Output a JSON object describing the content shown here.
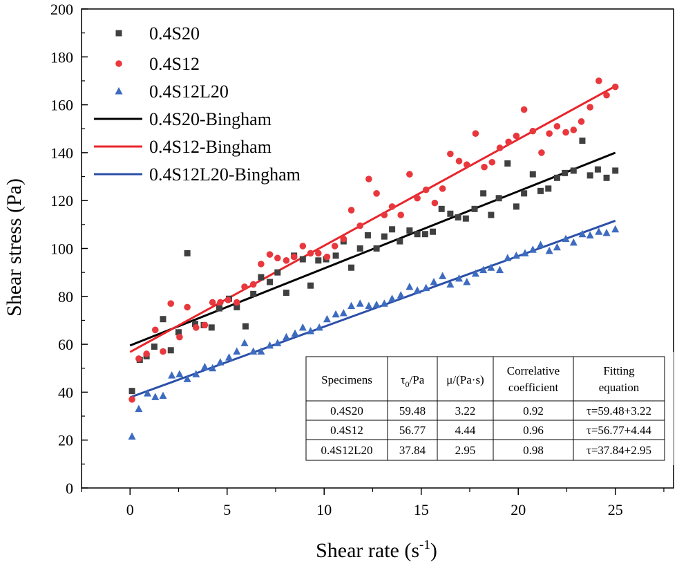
{
  "chart_data": {
    "type": "scatter",
    "xlabel": "Shear rate (s",
    "xlabel_sup": "-1",
    "xlabel_end": ")",
    "ylabel": "Shear stress (Pa)",
    "xlim": [
      -2.5,
      28
    ],
    "ylim": [
      0,
      200
    ],
    "xticks": [
      "0",
      "5",
      "10",
      "15",
      "20",
      "25"
    ],
    "yticks": [
      "0",
      "20",
      "40",
      "60",
      "80",
      "100",
      "120",
      "140",
      "160",
      "180",
      "200"
    ],
    "legend_position": "top-left",
    "series": [
      {
        "name": "0.4S20",
        "kind": "scatter",
        "marker": "square",
        "color": "#404040",
        "points": [
          [
            0.1,
            40.5
          ],
          [
            0.5,
            53.5
          ],
          [
            0.85,
            55
          ],
          [
            1.25,
            59
          ],
          [
            1.7,
            70.5
          ],
          [
            2.1,
            57.5
          ],
          [
            2.5,
            65
          ],
          [
            2.95,
            98
          ],
          [
            3.35,
            68.5
          ],
          [
            3.8,
            68
          ],
          [
            4.2,
            67
          ],
          [
            4.6,
            75
          ],
          [
            5.1,
            79
          ],
          [
            5.5,
            75.5
          ],
          [
            5.95,
            67.5
          ],
          [
            6.35,
            81
          ],
          [
            6.75,
            88
          ],
          [
            7.2,
            86
          ],
          [
            7.6,
            90
          ],
          [
            8.05,
            81.5
          ],
          [
            8.45,
            97
          ],
          [
            8.9,
            95.5
          ],
          [
            9.3,
            84.5
          ],
          [
            9.7,
            95
          ],
          [
            10.1,
            95.5
          ],
          [
            10.6,
            97
          ],
          [
            11.0,
            103
          ],
          [
            11.4,
            92
          ],
          [
            11.85,
            100
          ],
          [
            12.25,
            105.5
          ],
          [
            12.7,
            100
          ],
          [
            13.1,
            105
          ],
          [
            13.5,
            108
          ],
          [
            13.9,
            103
          ],
          [
            14.4,
            107.5
          ],
          [
            14.8,
            106
          ],
          [
            15.2,
            106
          ],
          [
            15.6,
            107
          ],
          [
            16.05,
            116.5
          ],
          [
            16.5,
            114.5
          ],
          [
            16.9,
            113
          ],
          [
            17.3,
            112.5
          ],
          [
            17.75,
            116.5
          ],
          [
            18.2,
            123
          ],
          [
            18.6,
            114
          ],
          [
            19.0,
            121
          ],
          [
            19.45,
            135.5
          ],
          [
            19.9,
            117.5
          ],
          [
            20.3,
            123
          ],
          [
            20.75,
            131
          ],
          [
            21.15,
            124
          ],
          [
            21.55,
            125
          ],
          [
            22.0,
            129.5
          ],
          [
            22.4,
            131.5
          ],
          [
            22.85,
            132.5
          ],
          [
            23.3,
            145
          ],
          [
            23.7,
            130.5
          ],
          [
            24.1,
            133
          ],
          [
            24.55,
            129.5
          ],
          [
            25.0,
            132.5
          ]
        ]
      },
      {
        "name": "0.4S12",
        "kind": "scatter",
        "marker": "circle",
        "color": "#e8383d",
        "points": [
          [
            0.1,
            37
          ],
          [
            0.45,
            54
          ],
          [
            0.85,
            56
          ],
          [
            1.3,
            66
          ],
          [
            1.7,
            57
          ],
          [
            2.1,
            77
          ],
          [
            2.55,
            63
          ],
          [
            2.95,
            75.5
          ],
          [
            3.4,
            67
          ],
          [
            3.85,
            68
          ],
          [
            4.25,
            77.5
          ],
          [
            4.65,
            77.5
          ],
          [
            5.05,
            78.5
          ],
          [
            5.5,
            77.5
          ],
          [
            5.9,
            84
          ],
          [
            6.35,
            85
          ],
          [
            6.75,
            93.5
          ],
          [
            7.2,
            97.5
          ],
          [
            7.6,
            96
          ],
          [
            8.05,
            95
          ],
          [
            8.45,
            96.5
          ],
          [
            8.9,
            101
          ],
          [
            9.3,
            98
          ],
          [
            9.7,
            98
          ],
          [
            10.15,
            96.5
          ],
          [
            10.55,
            101
          ],
          [
            11.0,
            104
          ],
          [
            11.4,
            116
          ],
          [
            11.85,
            109.5
          ],
          [
            12.3,
            129
          ],
          [
            12.7,
            123
          ],
          [
            13.1,
            114
          ],
          [
            13.5,
            117.5
          ],
          [
            13.95,
            114
          ],
          [
            14.4,
            131
          ],
          [
            14.8,
            121
          ],
          [
            15.25,
            124.5
          ],
          [
            15.7,
            119
          ],
          [
            16.1,
            125
          ],
          [
            16.5,
            139.5
          ],
          [
            16.95,
            136.5
          ],
          [
            17.35,
            135
          ],
          [
            17.8,
            148
          ],
          [
            18.25,
            134
          ],
          [
            18.65,
            136
          ],
          [
            19.05,
            142
          ],
          [
            19.5,
            144.5
          ],
          [
            19.9,
            147
          ],
          [
            20.3,
            158
          ],
          [
            20.75,
            149
          ],
          [
            21.2,
            140
          ],
          [
            21.6,
            148
          ],
          [
            22.0,
            151
          ],
          [
            22.45,
            148.5
          ],
          [
            22.85,
            149.5
          ],
          [
            23.25,
            153
          ],
          [
            23.7,
            159
          ],
          [
            24.15,
            170
          ],
          [
            24.55,
            164
          ],
          [
            25.0,
            167.5
          ]
        ]
      },
      {
        "name": "0.4S12L20",
        "kind": "scatter",
        "marker": "triangle",
        "color": "#3d6bbf",
        "points": [
          [
            0.1,
            21.5
          ],
          [
            0.45,
            33
          ],
          [
            0.9,
            39.5
          ],
          [
            1.3,
            38
          ],
          [
            1.7,
            38.5
          ],
          [
            2.15,
            47
          ],
          [
            2.55,
            47.5
          ],
          [
            2.95,
            45.5
          ],
          [
            3.4,
            47.5
          ],
          [
            3.85,
            50.5
          ],
          [
            4.25,
            50
          ],
          [
            4.65,
            52.5
          ],
          [
            5.1,
            54.5
          ],
          [
            5.5,
            57
          ],
          [
            5.9,
            60.5
          ],
          [
            6.35,
            57
          ],
          [
            6.75,
            57
          ],
          [
            7.2,
            59.5
          ],
          [
            7.6,
            60.5
          ],
          [
            8.05,
            63
          ],
          [
            8.5,
            64.5
          ],
          [
            8.9,
            67
          ],
          [
            9.3,
            65.5
          ],
          [
            9.75,
            67
          ],
          [
            10.15,
            70.5
          ],
          [
            10.6,
            72.5
          ],
          [
            11.0,
            73
          ],
          [
            11.4,
            76
          ],
          [
            11.85,
            77
          ],
          [
            12.3,
            76
          ],
          [
            12.7,
            76.5
          ],
          [
            13.1,
            77
          ],
          [
            13.5,
            79
          ],
          [
            13.95,
            80.5
          ],
          [
            14.4,
            84
          ],
          [
            14.8,
            82.5
          ],
          [
            15.25,
            83.5
          ],
          [
            15.65,
            86
          ],
          [
            16.1,
            88.5
          ],
          [
            16.5,
            85
          ],
          [
            16.95,
            87.5
          ],
          [
            17.35,
            86
          ],
          [
            17.8,
            89.5
          ],
          [
            18.2,
            91
          ],
          [
            18.6,
            92
          ],
          [
            19.05,
            91
          ],
          [
            19.45,
            96
          ],
          [
            19.9,
            97
          ],
          [
            20.35,
            98
          ],
          [
            20.75,
            99.5
          ],
          [
            21.15,
            101.5
          ],
          [
            21.6,
            99
          ],
          [
            22.0,
            100.5
          ],
          [
            22.45,
            104
          ],
          [
            22.85,
            102.5
          ],
          [
            23.3,
            106
          ],
          [
            23.7,
            105.5
          ],
          [
            24.15,
            107
          ],
          [
            24.55,
            106.5
          ],
          [
            25.0,
            108
          ]
        ]
      },
      {
        "name": "0.4S20-Bingham",
        "kind": "line",
        "color": "#000000",
        "intercept": 59.48,
        "slope": 3.22,
        "x_range": [
          0,
          25
        ]
      },
      {
        "name": "0.4S12-Bingham",
        "kind": "line",
        "color": "#e8262c",
        "intercept": 56.77,
        "slope": 4.44,
        "x_range": [
          0,
          25
        ]
      },
      {
        "name": "0.4S12L20-Bingham",
        "kind": "line",
        "color": "#2b4fa8",
        "intercept": 37.84,
        "slope": 2.95,
        "x_range": [
          0,
          25
        ]
      }
    ],
    "table": {
      "headers": [
        {
          "line1": "Specimens",
          "line2": ""
        },
        {
          "line1": "τ",
          "sub": "0",
          "rest": "/Pa"
        },
        {
          "line1": "μ/(Pa·s)",
          "line2": ""
        },
        {
          "line1": "Correlative",
          "line2": "coefficient"
        },
        {
          "line1": "Fitting",
          "line2": "equation"
        }
      ],
      "rows": [
        [
          "0.4S20",
          "59.48",
          "3.22",
          "0.92",
          "τ=59.48+3.22"
        ],
        [
          "0.4S12",
          "56.77",
          "4.44",
          "0.96",
          "τ=56.77+4.44"
        ],
        [
          "0.4S12L20",
          "37.84",
          "2.95",
          "0.98",
          "τ=37.84+2.95"
        ]
      ]
    }
  }
}
